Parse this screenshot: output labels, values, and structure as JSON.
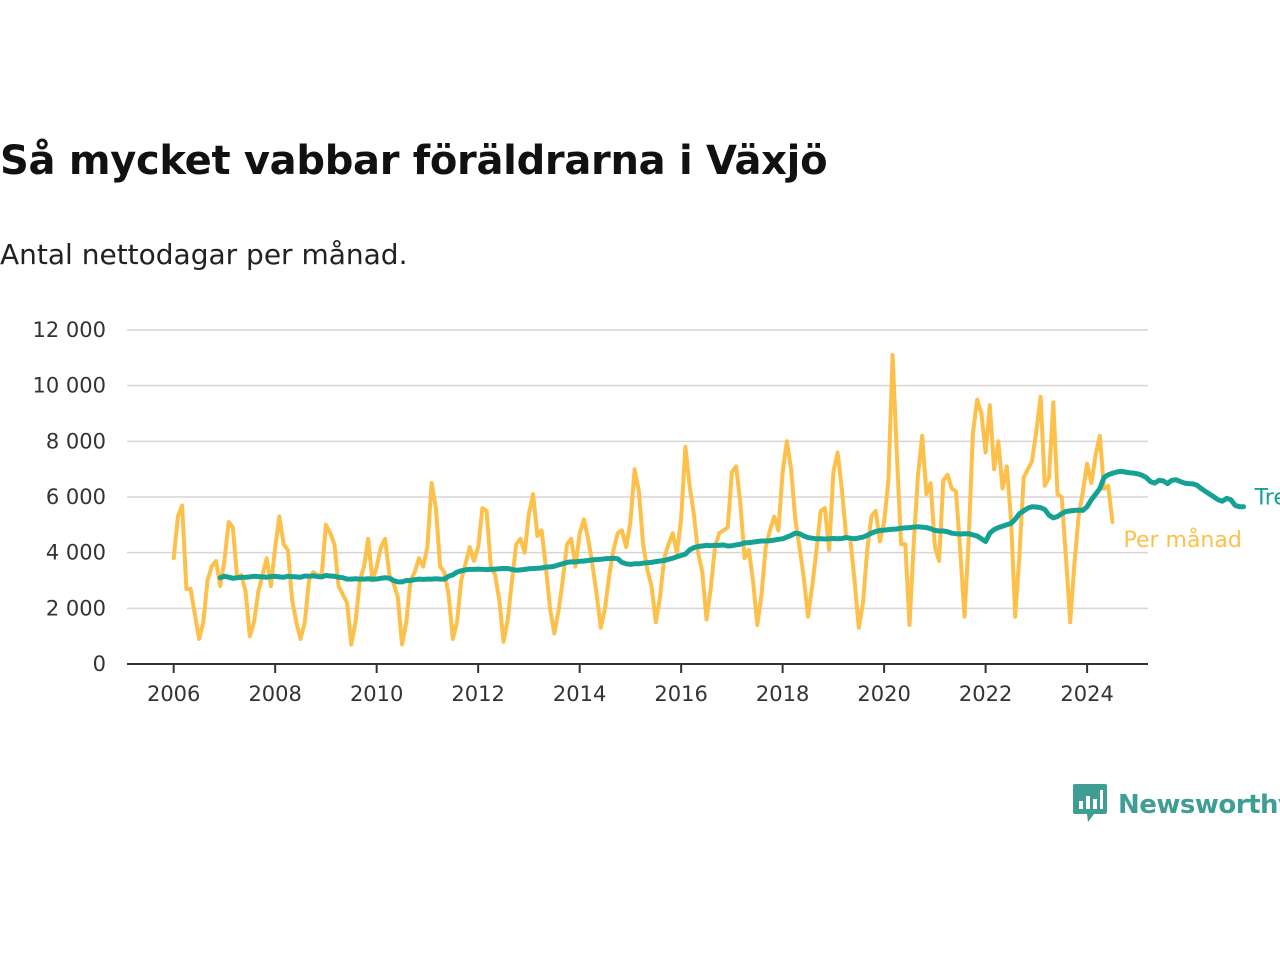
{
  "header": {
    "title": "Så mycket vabbar föräldrarna i Växjö",
    "subtitle": "Antal nettodagar per månad."
  },
  "brand": {
    "name": "Newsworthy",
    "icon": "newsworthy-logo-icon",
    "color": "#3e9e94"
  },
  "chart_data": {
    "type": "line",
    "title": "Så mycket vabbar föräldrarna i Växjö",
    "subtitle": "Antal nettodagar per månad.",
    "xlabel": "",
    "ylabel": "",
    "x_ticks": [
      "2006",
      "2008",
      "2010",
      "2012",
      "2014",
      "2016",
      "2018",
      "2020",
      "2022",
      "2024"
    ],
    "y_ticks": [
      "0",
      "2 000",
      "4 000",
      "6 000",
      "8 000",
      "10 000",
      "12 000"
    ],
    "xlim": [
      2005.08,
      2025.2
    ],
    "ylim": [
      0,
      12000
    ],
    "grid": "horizontal",
    "legend": "inline-right",
    "series": [
      {
        "name": "Per månad",
        "color": "#fdc04a",
        "x_start": 2006.0,
        "x_step_months": 1,
        "values": [
          3800,
          5300,
          5700,
          2700,
          2700,
          1800,
          900,
          1500,
          3000,
          3500,
          3700,
          2800,
          3700,
          5100,
          4900,
          3100,
          3200,
          2600,
          1000,
          1500,
          2600,
          3200,
          3800,
          2800,
          4200,
          5300,
          4300,
          4100,
          2300,
          1500,
          900,
          1500,
          3000,
          3300,
          3200,
          3200,
          5000,
          4700,
          4300,
          2800,
          2500,
          2200,
          700,
          1500,
          3000,
          3500,
          4500,
          3000,
          3500,
          4200,
          4500,
          3200,
          2900,
          2400,
          700,
          1500,
          3000,
          3300,
          3800,
          3500,
          4200,
          6500,
          5600,
          3500,
          3300,
          2500,
          900,
          1500,
          3000,
          3600,
          4200,
          3700,
          4200,
          5600,
          5500,
          3500,
          3200,
          2300,
          800,
          1600,
          3000,
          4300,
          4500,
          4000,
          5400,
          6100,
          4600,
          4800,
          3500,
          2000,
          1100,
          1900,
          3000,
          4300,
          4500,
          3500,
          4700,
          5200,
          4500,
          3600,
          2500,
          1300,
          2000,
          3200,
          4100,
          4700,
          4800,
          4200,
          5100,
          7000,
          6200,
          4300,
          3400,
          2800,
          1500,
          2400,
          3800,
          4300,
          4700,
          4000,
          5200,
          7800,
          6400,
          5400,
          4000,
          3300,
          1600,
          2700,
          4200,
          4700,
          4800,
          4900,
          6900,
          7100,
          5800,
          3800,
          4100,
          3000,
          1400,
          2500,
          4200,
          4800,
          5300,
          4800,
          6900,
          8000,
          7000,
          5200,
          4200,
          3100,
          1700,
          2800,
          4100,
          5500,
          5600,
          4100,
          6900,
          7600,
          6300,
          4600,
          4500,
          3000,
          1300,
          2200,
          4100,
          5300,
          5500,
          4400,
          5100,
          6600,
          11100,
          7600,
          4300,
          4300,
          1400,
          4300,
          6800,
          8200,
          6100,
          6500,
          4200,
          3700,
          6600,
          6800,
          6300,
          6200,
          4100,
          1700,
          4500,
          8300,
          9500,
          9000,
          7600,
          9300,
          7000,
          8000,
          6300,
          7100,
          5200,
          1700,
          3900,
          6700,
          7000,
          7300,
          8400,
          9600,
          6400,
          6700,
          9400,
          6100,
          6000,
          3800,
          1500,
          3600,
          5300,
          6200,
          7200,
          6500,
          7500,
          8200,
          6300,
          6400,
          5100
        ]
      },
      {
        "name": "Trend",
        "color": "#16a195",
        "x_start": 2006.9167,
        "x_step_months": 1,
        "values": [
          3100,
          3150,
          3120,
          3080,
          3100,
          3110,
          3120,
          3130,
          3150,
          3140,
          3130,
          3120,
          3140,
          3150,
          3130,
          3120,
          3150,
          3140,
          3130,
          3120,
          3160,
          3150,
          3170,
          3140,
          3130,
          3180,
          3160,
          3150,
          3120,
          3100,
          3050,
          3050,
          3060,
          3050,
          3050,
          3060,
          3050,
          3050,
          3080,
          3100,
          3080,
          3000,
          2950,
          2950,
          3000,
          3000,
          3030,
          3050,
          3040,
          3050,
          3050,
          3060,
          3050,
          3050,
          3150,
          3200,
          3300,
          3350,
          3380,
          3400,
          3400,
          3410,
          3400,
          3390,
          3400,
          3410,
          3420,
          3430,
          3430,
          3400,
          3370,
          3380,
          3400,
          3420,
          3430,
          3440,
          3450,
          3480,
          3490,
          3510,
          3560,
          3600,
          3650,
          3670,
          3670,
          3690,
          3700,
          3720,
          3740,
          3750,
          3760,
          3780,
          3790,
          3800,
          3780,
          3650,
          3600,
          3580,
          3600,
          3600,
          3620,
          3640,
          3650,
          3680,
          3700,
          3720,
          3760,
          3800,
          3850,
          3900,
          3950,
          4100,
          4180,
          4220,
          4240,
          4260,
          4250,
          4270,
          4260,
          4280,
          4240,
          4250,
          4280,
          4300,
          4350,
          4360,
          4380,
          4400,
          4420,
          4420,
          4430,
          4450,
          4480,
          4500,
          4560,
          4620,
          4700,
          4680,
          4600,
          4540,
          4520,
          4500,
          4500,
          4490,
          4500,
          4510,
          4500,
          4510,
          4540,
          4520,
          4500,
          4530,
          4560,
          4620,
          4700,
          4760,
          4800,
          4810,
          4830,
          4840,
          4850,
          4880,
          4890,
          4900,
          4920,
          4930,
          4920,
          4900,
          4860,
          4800,
          4780,
          4780,
          4750,
          4700,
          4680,
          4670,
          4680,
          4680,
          4640,
          4600,
          4500,
          4400,
          4700,
          4830,
          4900,
          4950,
          5000,
          5050,
          5200,
          5400,
          5500,
          5600,
          5650,
          5640,
          5620,
          5550,
          5350,
          5250,
          5300,
          5400,
          5480,
          5500,
          5520,
          5530,
          5520,
          5650,
          5900,
          6100,
          6300,
          6700,
          6800,
          6850,
          6900,
          6920,
          6900,
          6870,
          6860,
          6830,
          6780,
          6700,
          6550,
          6500,
          6600,
          6580,
          6480,
          6600,
          6620,
          6560,
          6500,
          6480,
          6470,
          6420,
          6300,
          6200,
          6100,
          6000,
          5900,
          5850,
          5950,
          5900,
          5700,
          5650,
          5650
        ]
      }
    ]
  }
}
